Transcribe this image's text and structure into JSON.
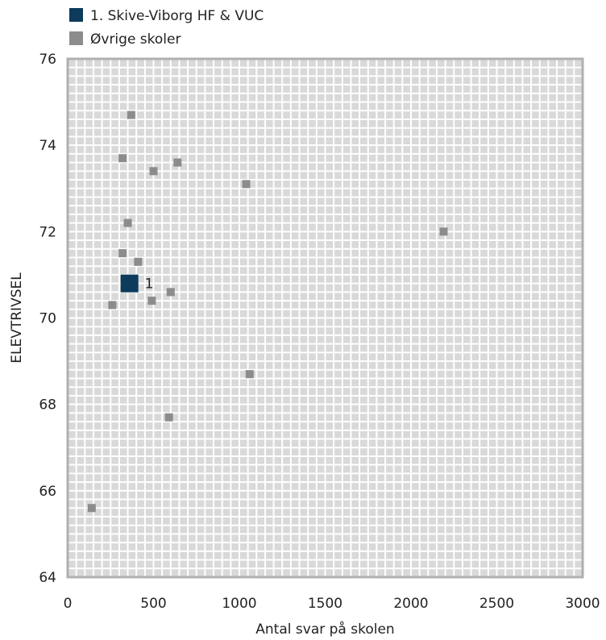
{
  "chart_data": {
    "type": "scatter",
    "title": "",
    "xlabel": "Antal svar på skolen",
    "ylabel": "ELEVTRIVSEL",
    "xlim": [
      0,
      3000
    ],
    "ylim": [
      64,
      76
    ],
    "x_ticks": [
      0,
      500,
      1000,
      1500,
      2000,
      2500,
      3000
    ],
    "y_ticks": [
      64,
      66,
      68,
      70,
      72,
      74,
      76
    ],
    "grid": true,
    "legend_position": "top-left",
    "legend": [
      {
        "label": "1. Skive-Viborg HF & VUC",
        "color": "#0d3b5c"
      },
      {
        "label": "Øvrige skoler",
        "color": "#8c8c8c"
      }
    ],
    "series": [
      {
        "name": "1. Skive-Viborg HF & VUC",
        "color": "#0d3b5c",
        "points": [
          {
            "x": 360,
            "y": 70.8,
            "label": "1"
          }
        ]
      },
      {
        "name": "Øvrige skoler",
        "color": "#8c8c8c",
        "points": [
          {
            "x": 370,
            "y": 74.7
          },
          {
            "x": 320,
            "y": 73.7
          },
          {
            "x": 500,
            "y": 73.4
          },
          {
            "x": 640,
            "y": 73.6
          },
          {
            "x": 1040,
            "y": 73.1
          },
          {
            "x": 2190,
            "y": 72.0
          },
          {
            "x": 350,
            "y": 72.2
          },
          {
            "x": 320,
            "y": 71.5
          },
          {
            "x": 410,
            "y": 71.3
          },
          {
            "x": 600,
            "y": 70.6
          },
          {
            "x": 490,
            "y": 70.4
          },
          {
            "x": 260,
            "y": 70.3
          },
          {
            "x": 1060,
            "y": 68.7
          },
          {
            "x": 590,
            "y": 67.7
          },
          {
            "x": 140,
            "y": 65.6
          }
        ]
      }
    ]
  }
}
